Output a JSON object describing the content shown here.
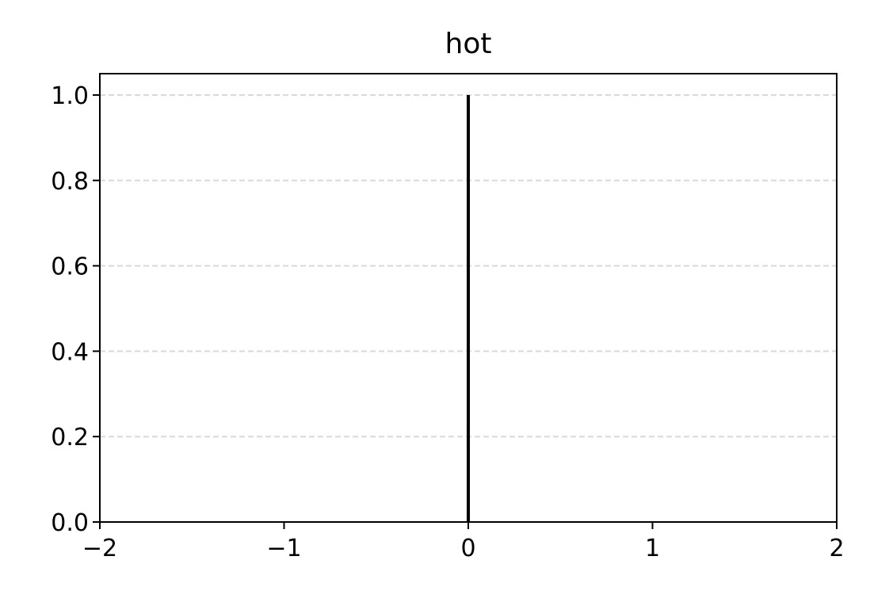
{
  "chart_data": {
    "type": "line",
    "title": "hot",
    "xlabel": "",
    "ylabel": "",
    "xlim": [
      -2,
      2
    ],
    "ylim": [
      0,
      1.05
    ],
    "x_ticks": [
      -2,
      -1,
      0,
      1,
      2
    ],
    "x_tick_labels": [
      "−2",
      "−1",
      "0",
      "1",
      "2"
    ],
    "y_ticks": [
      0.0,
      0.2,
      0.4,
      0.6,
      0.8,
      1.0
    ],
    "y_tick_labels": [
      "0.0",
      "0.2",
      "0.4",
      "0.6",
      "0.8",
      "1.0"
    ],
    "grid": {
      "axis": "y",
      "style": "dashed",
      "color": "#d9d9d9"
    },
    "series": [
      {
        "color": "#000000",
        "x": [
          0,
          0
        ],
        "y": [
          0,
          1
        ]
      }
    ]
  }
}
